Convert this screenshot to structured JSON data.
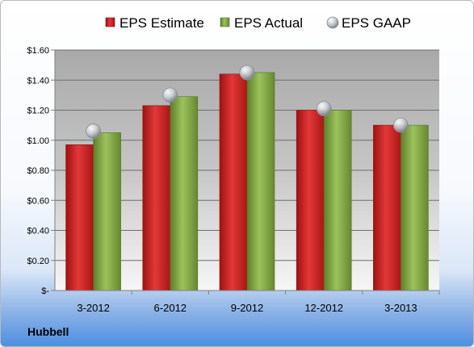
{
  "company": "Hubbell",
  "colors": {
    "estimate": "#d52a2a",
    "actual": "#8fb450",
    "gaap": "#c8ccd2"
  },
  "chart_data": {
    "type": "bar",
    "title": "",
    "xlabel": "",
    "ylabel": "",
    "categories": [
      "3-2012",
      "6-2012",
      "9-2012",
      "12-2012",
      "3-2013"
    ],
    "series": [
      {
        "name": "EPS Estimate",
        "kind": "bar",
        "values": [
          0.97,
          1.23,
          1.44,
          1.2,
          1.1
        ]
      },
      {
        "name": "EPS Actual",
        "kind": "bar",
        "values": [
          1.05,
          1.29,
          1.45,
          1.2,
          1.1
        ]
      },
      {
        "name": "EPS GAAP",
        "kind": "marker",
        "values": [
          1.06,
          1.3,
          1.45,
          1.21,
          1.1
        ]
      }
    ],
    "ylim": [
      0,
      1.6
    ],
    "yticks": [
      0,
      0.2,
      0.4,
      0.6,
      0.8,
      1.0,
      1.2,
      1.4,
      1.6
    ],
    "ytick_labels": [
      "$-",
      "$0.20",
      "$0.40",
      "$0.60",
      "$0.80",
      "$1.00",
      "$1.20",
      "$1.40",
      "$1.60"
    ],
    "grid": true,
    "legend_position": "top"
  }
}
